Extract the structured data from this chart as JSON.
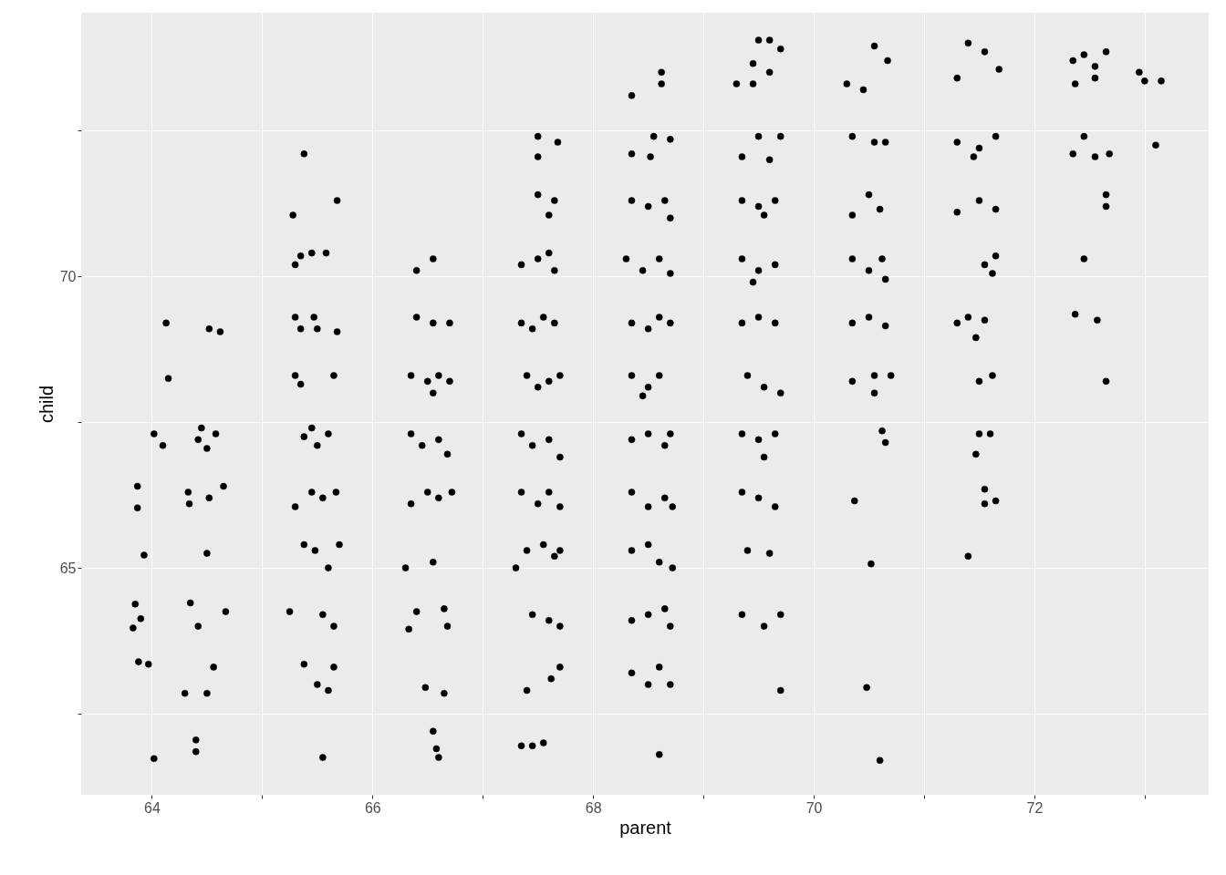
{
  "chart_data": {
    "type": "scatter",
    "xlabel": "parent",
    "ylabel": "child",
    "color": "#000000",
    "marker": "circle",
    "grid": true,
    "xlim": [
      63.36,
      73.58
    ],
    "ylim": [
      61.11,
      74.52
    ],
    "xticks": [
      64,
      {
        "value": 65,
        "label": null
      },
      66,
      {
        "value": 67,
        "label": null
      },
      68,
      {
        "value": 69,
        "label": null
      },
      70,
      {
        "value": 71,
        "label": null
      },
      72,
      {
        "value": 73,
        "label": null
      }
    ],
    "yticks": [
      {
        "value": 62.5,
        "label": null
      },
      65,
      {
        "value": 67.5,
        "label": null
      },
      70,
      {
        "value": 72.5,
        "label": null
      }
    ],
    "x": [
      63.87,
      63.87,
      63.93,
      63.85,
      63.9,
      63.83,
      63.88,
      63.97,
      64.02,
      64.13,
      64.15,
      64.02,
      64.1,
      64.42,
      64.45,
      64.5,
      64.58,
      64.33,
      64.34,
      64.52,
      64.65,
      64.5,
      64.35,
      64.42,
      64.67,
      64.3,
      64.5,
      64.56,
      64.4,
      64.4,
      64.52,
      64.62,
      65.38,
      65.28,
      65.68,
      65.35,
      65.45,
      65.58,
      65.3,
      65.3,
      65.35,
      65.47,
      65.5,
      65.68,
      65.3,
      65.35,
      65.65,
      65.38,
      65.5,
      65.6,
      65.45,
      65.3,
      65.45,
      65.55,
      65.67,
      65.38,
      65.48,
      65.6,
      65.7,
      65.25,
      65.55,
      65.65,
      65.38,
      65.5,
      65.65,
      65.6,
      65.55,
      66.4,
      66.55,
      66.4,
      66.55,
      66.7,
      66.35,
      66.5,
      66.6,
      66.7,
      66.55,
      66.35,
      66.45,
      66.6,
      66.68,
      66.35,
      66.5,
      66.6,
      66.72,
      66.3,
      66.55,
      66.4,
      66.33,
      66.65,
      66.68,
      66.48,
      66.65,
      66.55,
      66.58,
      66.6,
      67.5,
      67.68,
      67.5,
      67.5,
      67.65,
      67.6,
      67.35,
      67.5,
      67.65,
      67.6,
      67.35,
      67.45,
      67.55,
      67.65,
      67.4,
      67.5,
      67.6,
      67.7,
      67.35,
      67.45,
      67.6,
      67.7,
      67.35,
      67.5,
      67.6,
      67.7,
      67.4,
      67.55,
      67.3,
      67.65,
      67.7,
      67.45,
      67.6,
      67.7,
      67.4,
      67.7,
      67.62,
      67.35,
      67.45,
      67.55,
      68.35,
      68.62,
      68.62,
      68.35,
      68.55,
      68.7,
      68.52,
      68.35,
      68.5,
      68.65,
      68.7,
      68.3,
      68.45,
      68.6,
      68.7,
      68.35,
      68.5,
      68.6,
      68.7,
      68.35,
      68.5,
      68.6,
      68.45,
      68.35,
      68.5,
      68.65,
      68.7,
      68.35,
      68.5,
      68.65,
      68.72,
      68.35,
      68.5,
      68.6,
      68.72,
      68.35,
      68.5,
      68.65,
      68.7,
      68.35,
      68.5,
      68.6,
      68.7,
      68.6,
      69.5,
      69.6,
      69.45,
      69.7,
      69.3,
      69.45,
      69.6,
      69.5,
      69.7,
      69.35,
      69.6,
      69.35,
      69.5,
      69.65,
      69.55,
      69.35,
      69.5,
      69.65,
      69.45,
      69.35,
      69.5,
      69.65,
      69.4,
      69.55,
      69.7,
      69.35,
      69.5,
      69.65,
      69.55,
      69.35,
      69.5,
      69.65,
      69.4,
      69.6,
      69.35,
      69.55,
      69.7,
      69.7,
      70.3,
      70.55,
      70.67,
      70.45,
      70.35,
      70.55,
      70.65,
      70.35,
      70.5,
      70.6,
      70.35,
      70.5,
      70.62,
      70.65,
      70.35,
      70.5,
      70.65,
      70.35,
      70.55,
      70.7,
      70.55,
      70.62,
      70.65,
      70.37,
      70.52,
      70.48,
      70.6,
      71.4,
      71.55,
      71.3,
      71.68,
      71.3,
      71.5,
      71.65,
      71.45,
      71.3,
      71.5,
      71.65,
      71.55,
      71.65,
      71.62,
      71.3,
      71.4,
      71.55,
      71.47,
      71.5,
      71.62,
      71.5,
      71.6,
      71.47,
      71.55,
      71.55,
      71.65,
      71.4,
      72.35,
      72.45,
      72.55,
      72.65,
      72.37,
      72.55,
      72.35,
      72.45,
      72.55,
      72.68,
      72.65,
      72.65,
      72.45,
      72.37,
      72.57,
      72.65,
      72.95,
      73.0,
      73.15,
      73.1
    ],
    "values": [
      66.4,
      66.03,
      65.22,
      64.38,
      64.13,
      63.97,
      63.39,
      63.35,
      61.73,
      69.2,
      68.25,
      67.3,
      67.1,
      67.2,
      67.4,
      67.05,
      67.3,
      66.3,
      66.1,
      66.2,
      66.4,
      65.25,
      64.4,
      64.0,
      64.25,
      62.85,
      62.85,
      63.3,
      62.05,
      61.85,
      69.1,
      69.05,
      72.1,
      71.05,
      71.3,
      70.35,
      70.4,
      70.4,
      70.2,
      69.3,
      69.1,
      69.3,
      69.1,
      69.05,
      68.3,
      68.15,
      68.3,
      67.25,
      67.1,
      67.3,
      67.4,
      66.05,
      66.3,
      66.2,
      66.3,
      65.4,
      65.3,
      65.0,
      65.4,
      64.25,
      64.2,
      64.0,
      63.35,
      63.0,
      63.3,
      62.9,
      61.75,
      70.1,
      70.3,
      69.3,
      69.2,
      69.2,
      68.3,
      68.2,
      68.3,
      68.2,
      68.0,
      67.3,
      67.1,
      67.2,
      66.95,
      66.1,
      66.3,
      66.2,
      66.3,
      65.0,
      65.1,
      64.25,
      63.95,
      64.3,
      64.0,
      62.95,
      62.85,
      62.2,
      61.9,
      61.75,
      72.4,
      72.3,
      72.05,
      71.4,
      71.3,
      71.05,
      70.2,
      70.3,
      70.1,
      70.4,
      69.2,
      69.1,
      69.3,
      69.2,
      68.3,
      68.1,
      68.2,
      68.3,
      67.3,
      67.1,
      67.2,
      66.9,
      66.3,
      66.1,
      66.3,
      66.05,
      65.3,
      65.4,
      65.0,
      65.2,
      65.3,
      64.2,
      64.1,
      64.0,
      62.9,
      63.3,
      63.1,
      61.95,
      61.95,
      62.0,
      73.1,
      73.5,
      73.3,
      72.1,
      72.4,
      72.35,
      72.05,
      71.3,
      71.2,
      71.3,
      71.0,
      70.3,
      70.1,
      70.3,
      70.05,
      69.2,
      69.1,
      69.3,
      69.2,
      68.3,
      68.1,
      68.3,
      67.95,
      67.2,
      67.3,
      67.1,
      67.3,
      66.3,
      66.05,
      66.2,
      66.05,
      65.3,
      65.4,
      65.1,
      65.0,
      64.1,
      64.2,
      64.3,
      64.0,
      63.2,
      63.0,
      63.3,
      63.0,
      61.8,
      74.05,
      74.05,
      73.65,
      73.9,
      73.3,
      73.3,
      73.5,
      72.4,
      72.4,
      72.05,
      72.0,
      71.3,
      71.2,
      71.3,
      71.05,
      70.3,
      70.1,
      70.2,
      69.9,
      69.2,
      69.3,
      69.2,
      68.3,
      68.1,
      68.0,
      67.3,
      67.2,
      67.3,
      66.9,
      66.3,
      66.2,
      66.05,
      65.3,
      65.25,
      64.2,
      64.0,
      64.2,
      62.9,
      73.3,
      73.95,
      73.7,
      73.2,
      72.4,
      72.3,
      72.3,
      71.05,
      71.4,
      71.15,
      70.3,
      70.1,
      70.3,
      69.95,
      69.2,
      69.3,
      69.15,
      68.2,
      68.3,
      68.3,
      68.0,
      67.35,
      67.15,
      66.15,
      65.07,
      62.95,
      61.7,
      74.0,
      73.85,
      73.4,
      73.55,
      72.3,
      72.2,
      72.4,
      72.05,
      71.1,
      71.3,
      71.15,
      70.2,
      70.35,
      70.05,
      69.2,
      69.3,
      69.25,
      68.95,
      68.2,
      68.3,
      67.3,
      67.3,
      66.95,
      66.35,
      66.1,
      66.15,
      65.2,
      73.7,
      73.8,
      73.6,
      73.85,
      73.3,
      73.4,
      72.1,
      72.4,
      72.05,
      72.1,
      71.4,
      71.2,
      70.3,
      69.35,
      69.25,
      68.2,
      73.5,
      73.35,
      73.35,
      72.25
    ]
  }
}
